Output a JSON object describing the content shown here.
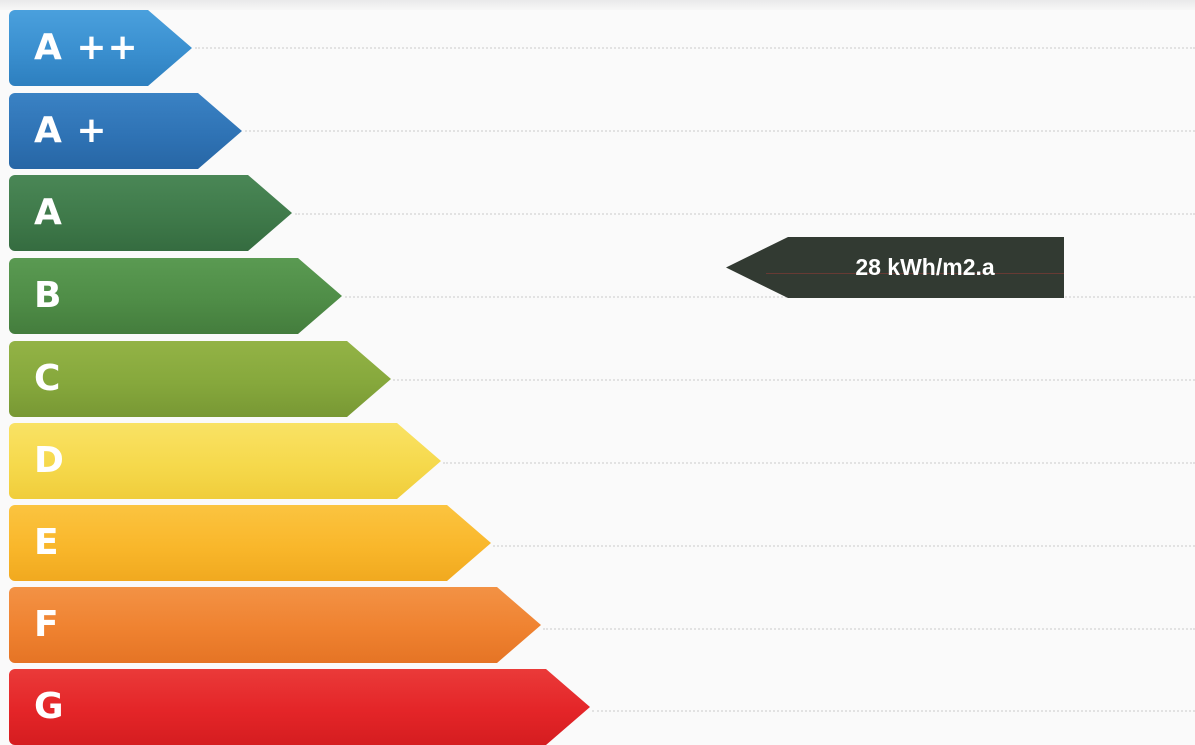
{
  "energy_label": {
    "classes": [
      {
        "label": "A ++",
        "color": "#3a8fcf"
      },
      {
        "label": "A +",
        "color": "#2f73b5"
      },
      {
        "label": "A",
        "color": "#3f7a4a"
      },
      {
        "label": "B",
        "color": "#4f8d47"
      },
      {
        "label": "C",
        "color": "#86a83c"
      },
      {
        "label": "D",
        "color": "#f6d94c"
      },
      {
        "label": "E",
        "color": "#f9b72b"
      },
      {
        "label": "F",
        "color": "#ef8230"
      },
      {
        "label": "G",
        "color": "#e42528"
      }
    ],
    "rating": {
      "value": "28 kWh/m2.a",
      "color": "#323a32"
    }
  }
}
